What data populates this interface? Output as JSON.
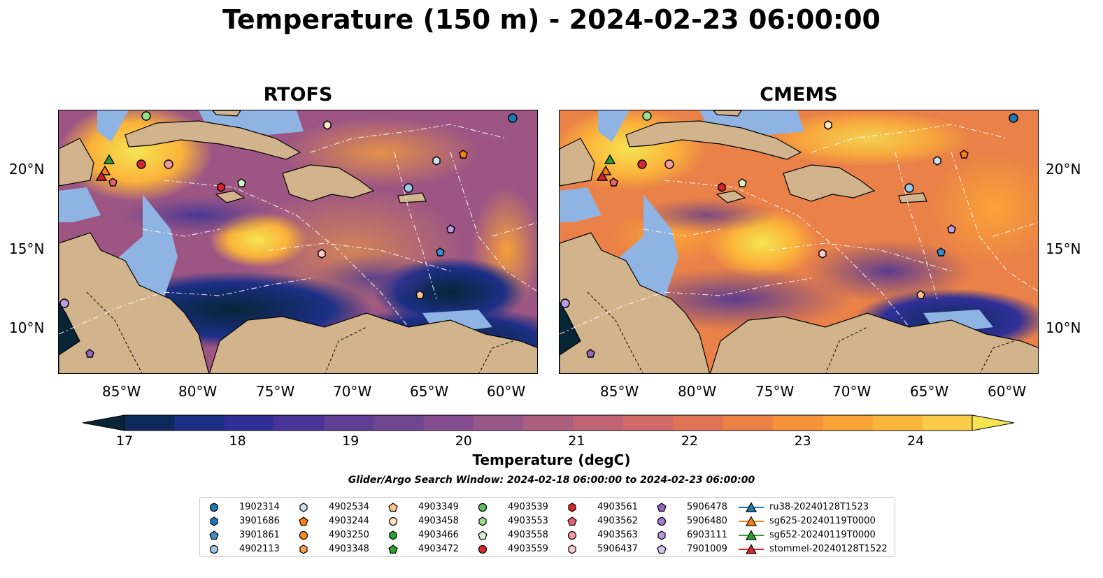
{
  "title": "Temperature (150 m) - 2024-02-23 06:00:00",
  "maps": [
    {
      "title": "RTOFS"
    },
    {
      "title": "CMEMS"
    }
  ],
  "axes": {
    "x_ticks": [
      "85°W",
      "80°W",
      "75°W",
      "70°W",
      "65°W",
      "60°W"
    ],
    "y_ticks": [
      "20°N",
      "15°N",
      "10°N"
    ],
    "lon_range": [
      -89.6,
      -58.5
    ],
    "lat_range": [
      7.0,
      23.8
    ]
  },
  "colorbar": {
    "label": "Temperature (degC)",
    "ticks": [
      "17",
      "18",
      "19",
      "20",
      "21",
      "22",
      "23",
      "24"
    ],
    "range": [
      17,
      24.5
    ],
    "extend": "both",
    "colors": [
      "#082437",
      "#0e2a5a",
      "#1c2f86",
      "#302f98",
      "#4a3397",
      "#5e3d92",
      "#714690",
      "#844e8e",
      "#985789",
      "#ad5f80",
      "#c06475",
      "#d16a68",
      "#e07355",
      "#ed8146",
      "#f6923a",
      "#fba336",
      "#fdb63c",
      "#fbcc48",
      "#f5e553"
    ]
  },
  "search_window": "Glider/Argo Search Window: 2024-02-18 06:00:00 to 2024-02-23 06:00:00",
  "legend": {
    "columns": [
      [
        {
          "label": "1902314",
          "marker": "circle",
          "color": "#1f77b4"
        },
        {
          "label": "3901686",
          "marker": "hexagon",
          "color": "#1f77b4"
        },
        {
          "label": "3901861",
          "marker": "pentagon",
          "color": "#3d8ccc"
        },
        {
          "label": "4902113",
          "marker": "circle",
          "color": "#9ec9ea"
        }
      ],
      [
        {
          "label": "4902534",
          "marker": "hexagon",
          "color": "#c6e0f4"
        },
        {
          "label": "4903244",
          "marker": "pentagon",
          "color": "#ff7f0e"
        },
        {
          "label": "4903250",
          "marker": "circle",
          "color": "#ff8c2a"
        },
        {
          "label": "4903348",
          "marker": "hexagon",
          "color": "#ffa050"
        }
      ],
      [
        {
          "label": "4903349",
          "marker": "pentagon",
          "color": "#ffc68a"
        },
        {
          "label": "4903458",
          "marker": "circle",
          "color": "#ffe2c0"
        },
        {
          "label": "4903466",
          "marker": "hexagon",
          "color": "#2ca02c"
        },
        {
          "label": "4903472",
          "marker": "pentagon",
          "color": "#2ca02c"
        }
      ],
      [
        {
          "label": "4903539",
          "marker": "circle",
          "color": "#5cc05c"
        },
        {
          "label": "4903553",
          "marker": "hexagon",
          "color": "#98df8a"
        },
        {
          "label": "4903558",
          "marker": "pentagon",
          "color": "#d4f5cc"
        },
        {
          "label": "4903559",
          "marker": "circle",
          "color": "#d62728"
        }
      ],
      [
        {
          "label": "4903561",
          "marker": "hexagon",
          "color": "#d62728"
        },
        {
          "label": "4903562",
          "marker": "pentagon",
          "color": "#e8606a"
        },
        {
          "label": "4903563",
          "marker": "circle",
          "color": "#f29a9a"
        },
        {
          "label": "5906437",
          "marker": "hexagon",
          "color": "#f8cccc"
        }
      ],
      [
        {
          "label": "5906478",
          "marker": "pentagon",
          "color": "#9467bd"
        },
        {
          "label": "5906480",
          "marker": "circle",
          "color": "#a27dcc"
        },
        {
          "label": "6903111",
          "marker": "hexagon",
          "color": "#bb99e0"
        },
        {
          "label": "7901009",
          "marker": "pentagon",
          "color": "#d9c4f2"
        }
      ],
      [
        {
          "label": "ru38-20240128T1523",
          "marker": "triangle-line",
          "color": "#1f77b4"
        },
        {
          "label": "sg625-20240119T0000",
          "marker": "triangle-line",
          "color": "#ff7f0e"
        },
        {
          "label": "sg652-20240119T0000",
          "marker": "triangle-line",
          "color": "#2ca02c"
        },
        {
          "label": "stommel-20240128T1522",
          "marker": "triangle-line",
          "color": "#d62728"
        }
      ]
    ]
  },
  "land_color": "#d2b48c",
  "shelf_color": "#8fb4e3"
}
